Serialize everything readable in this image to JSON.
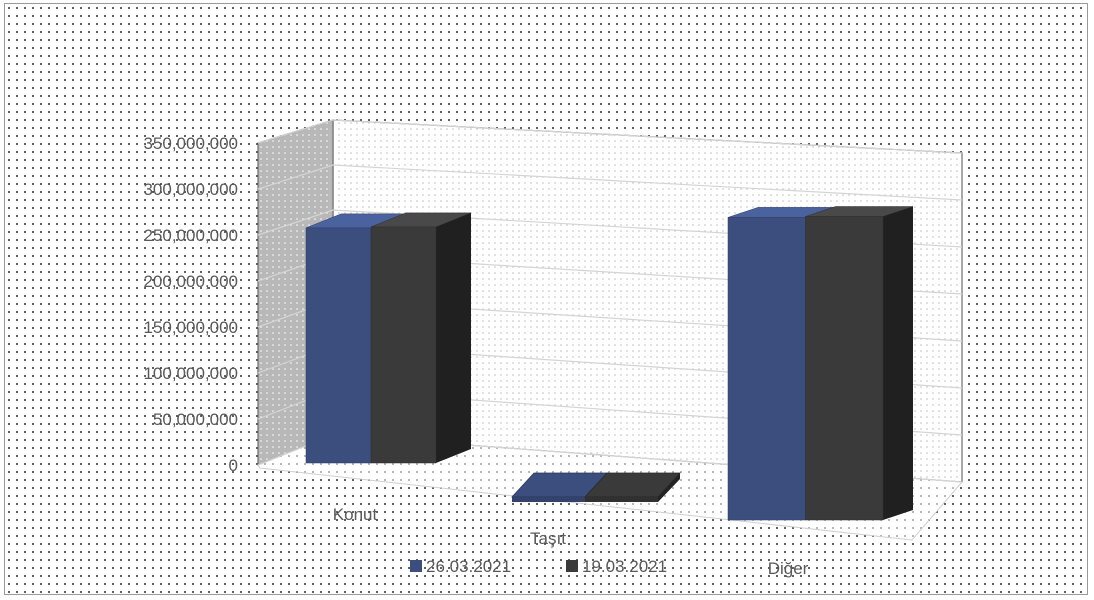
{
  "chart_data": {
    "type": "bar",
    "title": "",
    "xlabel": "",
    "ylabel": "",
    "categories": [
      "Konut",
      "Taşıt",
      "Diğer"
    ],
    "series": [
      {
        "name": "26.03.2021",
        "values": [
          258000000,
          3000000,
          332000000
        ],
        "color": "#3B4E7E"
      },
      {
        "name": "19.03.2021",
        "values": [
          259000000,
          3000000,
          333000000
        ],
        "color": "#3A3A3A"
      }
    ],
    "ylim": [
      0,
      350000000
    ],
    "yticks": [
      0,
      50000000,
      100000000,
      150000000,
      200000000,
      250000000,
      300000000,
      350000000
    ],
    "ytick_labels": [
      "0",
      "50,000,000",
      "100,000,000",
      "150,000,000",
      "200,000,000",
      "250,000,000",
      "300,000,000",
      "350,000,000"
    ],
    "gridlines": true,
    "style": "3d-perspective",
    "legend_position": "bottom"
  }
}
